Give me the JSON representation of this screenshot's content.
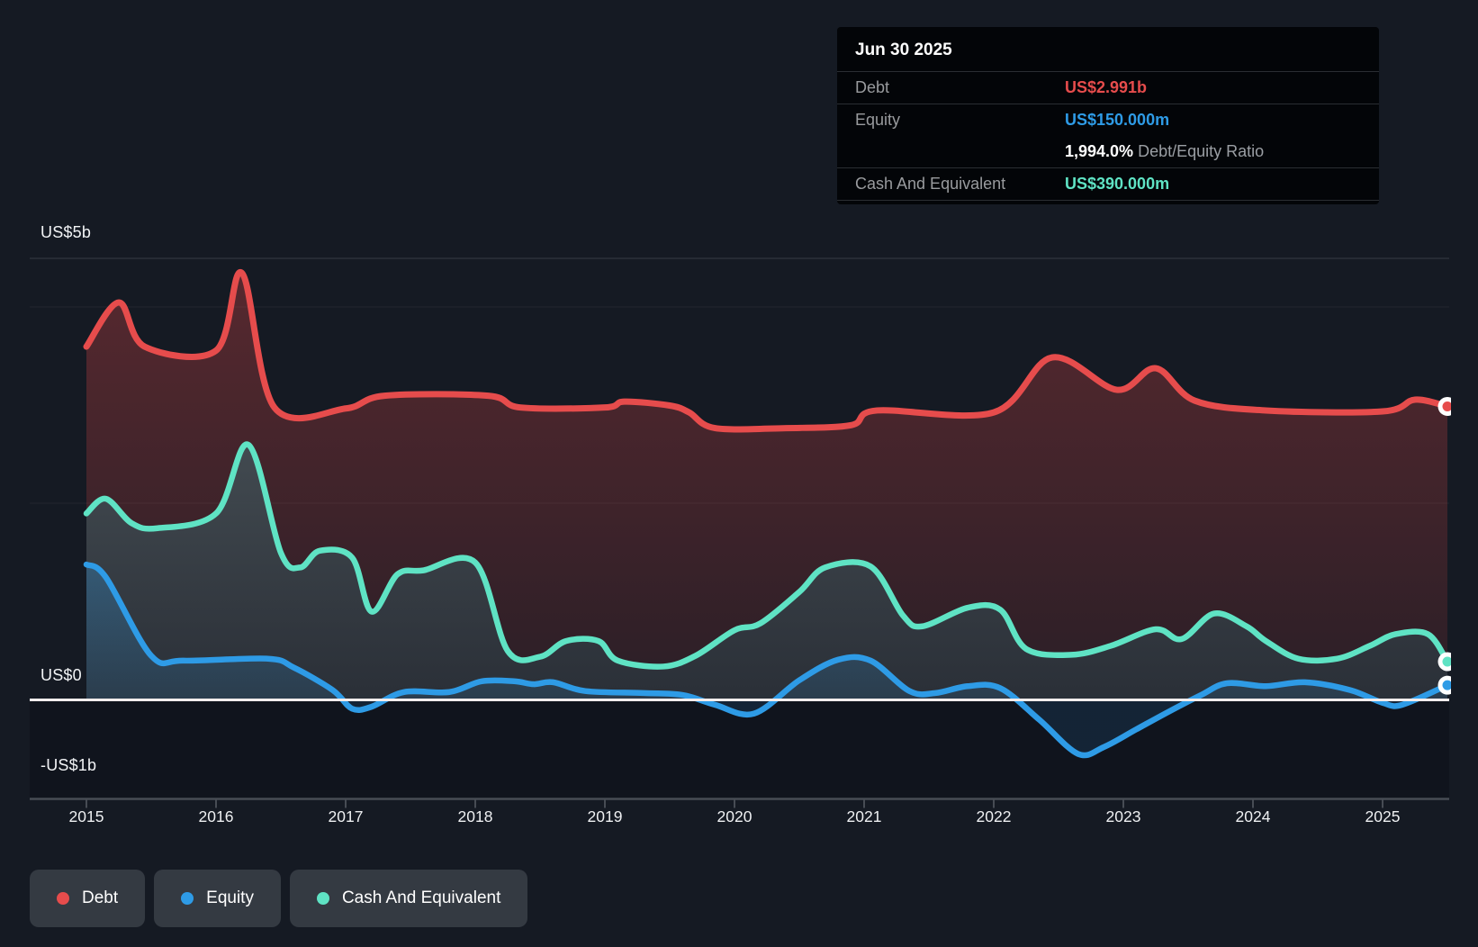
{
  "tooltip": {
    "date": "Jun 30 2025",
    "rows": [
      {
        "label": "Debt",
        "value": "US$2.991b",
        "suffix": "",
        "color": "#e64c4c"
      },
      {
        "label": "Equity",
        "value": "US$150.000m",
        "suffix": "",
        "color": "#2e9be6"
      },
      {
        "label": "",
        "value": "1,994.0%",
        "suffix": " Debt/Equity Ratio",
        "color": "#ffffff"
      },
      {
        "label": "Cash And Equivalent",
        "value": "US$390.000m",
        "suffix": "",
        "color": "#5fe3c4"
      }
    ]
  },
  "legend": {
    "items": [
      {
        "label": "Debt",
        "color": "#e64c4c"
      },
      {
        "label": "Equity",
        "color": "#2e9be6"
      },
      {
        "label": "Cash And Equivalent",
        "color": "#5fe3c4"
      }
    ]
  },
  "chart_data": {
    "type": "area",
    "x_unit": "year (decimal = fraction of year)",
    "x_range": [
      2015,
      2025.5
    ],
    "y_unit": "US$ billions",
    "y_range": [
      -1,
      5
    ],
    "grid": "horizontal-faint",
    "legend_position": "bottom-left",
    "y_tick_labels": [
      "US$5b",
      "US$0",
      "-US$1b"
    ],
    "x_tick_labels": [
      "2015",
      "2016",
      "2017",
      "2018",
      "2019",
      "2020",
      "2021",
      "2022",
      "2023",
      "2024",
      "2025"
    ],
    "end_markers": true,
    "series": [
      {
        "name": "Debt",
        "color": "#e64c4c",
        "points": [
          [
            2015.0,
            3.6
          ],
          [
            2015.25,
            4.05
          ],
          [
            2015.45,
            3.6
          ],
          [
            2016.0,
            3.56
          ],
          [
            2016.2,
            4.35
          ],
          [
            2016.45,
            2.98
          ],
          [
            2017.0,
            2.97
          ],
          [
            2017.3,
            3.1
          ],
          [
            2018.1,
            3.1
          ],
          [
            2018.35,
            2.98
          ],
          [
            2019.0,
            2.98
          ],
          [
            2019.15,
            3.04
          ],
          [
            2019.5,
            3.0
          ],
          [
            2019.65,
            2.93
          ],
          [
            2019.85,
            2.77
          ],
          [
            2020.4,
            2.77
          ],
          [
            2020.9,
            2.8
          ],
          [
            2021.1,
            2.95
          ],
          [
            2022.0,
            2.93
          ],
          [
            2022.45,
            3.49
          ],
          [
            2022.95,
            3.16
          ],
          [
            2023.25,
            3.38
          ],
          [
            2023.55,
            3.05
          ],
          [
            2024.1,
            2.95
          ],
          [
            2025.0,
            2.94
          ],
          [
            2025.25,
            3.06
          ],
          [
            2025.5,
            2.991
          ]
        ]
      },
      {
        "name": "Equity",
        "color": "#2e9be6",
        "points": [
          [
            2015.0,
            1.38
          ],
          [
            2015.15,
            1.25
          ],
          [
            2015.5,
            0.45
          ],
          [
            2015.75,
            0.4
          ],
          [
            2016.4,
            0.42
          ],
          [
            2016.6,
            0.33
          ],
          [
            2016.9,
            0.1
          ],
          [
            2017.05,
            -0.09
          ],
          [
            2017.2,
            -0.07
          ],
          [
            2017.45,
            0.08
          ],
          [
            2017.8,
            0.08
          ],
          [
            2018.05,
            0.19
          ],
          [
            2018.3,
            0.19
          ],
          [
            2018.45,
            0.16
          ],
          [
            2018.6,
            0.18
          ],
          [
            2018.85,
            0.09
          ],
          [
            2019.3,
            0.07
          ],
          [
            2019.6,
            0.05
          ],
          [
            2019.85,
            -0.05
          ],
          [
            2020.15,
            -0.14
          ],
          [
            2020.5,
            0.2
          ],
          [
            2020.8,
            0.41
          ],
          [
            2021.05,
            0.4
          ],
          [
            2021.35,
            0.09
          ],
          [
            2021.55,
            0.07
          ],
          [
            2021.8,
            0.14
          ],
          [
            2022.05,
            0.12
          ],
          [
            2022.35,
            -0.2
          ],
          [
            2022.65,
            -0.55
          ],
          [
            2022.85,
            -0.48
          ],
          [
            2023.1,
            -0.3
          ],
          [
            2023.35,
            -0.12
          ],
          [
            2023.6,
            0.05
          ],
          [
            2023.8,
            0.17
          ],
          [
            2024.1,
            0.14
          ],
          [
            2024.4,
            0.18
          ],
          [
            2024.75,
            0.1
          ],
          [
            2025.0,
            -0.03
          ],
          [
            2025.15,
            -0.05
          ],
          [
            2025.5,
            0.15
          ]
        ]
      },
      {
        "name": "Cash And Equivalent",
        "color": "#5fe3c4",
        "points": [
          [
            2015.0,
            1.9
          ],
          [
            2015.15,
            2.05
          ],
          [
            2015.35,
            1.8
          ],
          [
            2015.55,
            1.75
          ],
          [
            2016.0,
            1.9
          ],
          [
            2016.25,
            2.6
          ],
          [
            2016.5,
            1.5
          ],
          [
            2016.65,
            1.35
          ],
          [
            2016.8,
            1.52
          ],
          [
            2017.05,
            1.45
          ],
          [
            2017.2,
            0.9
          ],
          [
            2017.4,
            1.28
          ],
          [
            2017.6,
            1.32
          ],
          [
            2018.0,
            1.4
          ],
          [
            2018.25,
            0.5
          ],
          [
            2018.5,
            0.44
          ],
          [
            2018.7,
            0.6
          ],
          [
            2018.95,
            0.6
          ],
          [
            2019.1,
            0.4
          ],
          [
            2019.45,
            0.34
          ],
          [
            2019.7,
            0.45
          ],
          [
            2020.0,
            0.71
          ],
          [
            2020.2,
            0.78
          ],
          [
            2020.5,
            1.1
          ],
          [
            2020.7,
            1.35
          ],
          [
            2021.05,
            1.36
          ],
          [
            2021.3,
            0.86
          ],
          [
            2021.45,
            0.75
          ],
          [
            2021.8,
            0.94
          ],
          [
            2022.05,
            0.92
          ],
          [
            2022.25,
            0.52
          ],
          [
            2022.6,
            0.46
          ],
          [
            2022.9,
            0.55
          ],
          [
            2023.25,
            0.72
          ],
          [
            2023.45,
            0.62
          ],
          [
            2023.7,
            0.88
          ],
          [
            2023.95,
            0.75
          ],
          [
            2024.1,
            0.6
          ],
          [
            2024.35,
            0.42
          ],
          [
            2024.65,
            0.42
          ],
          [
            2024.9,
            0.55
          ],
          [
            2025.1,
            0.67
          ],
          [
            2025.35,
            0.67
          ],
          [
            2025.5,
            0.39
          ]
        ]
      }
    ]
  }
}
